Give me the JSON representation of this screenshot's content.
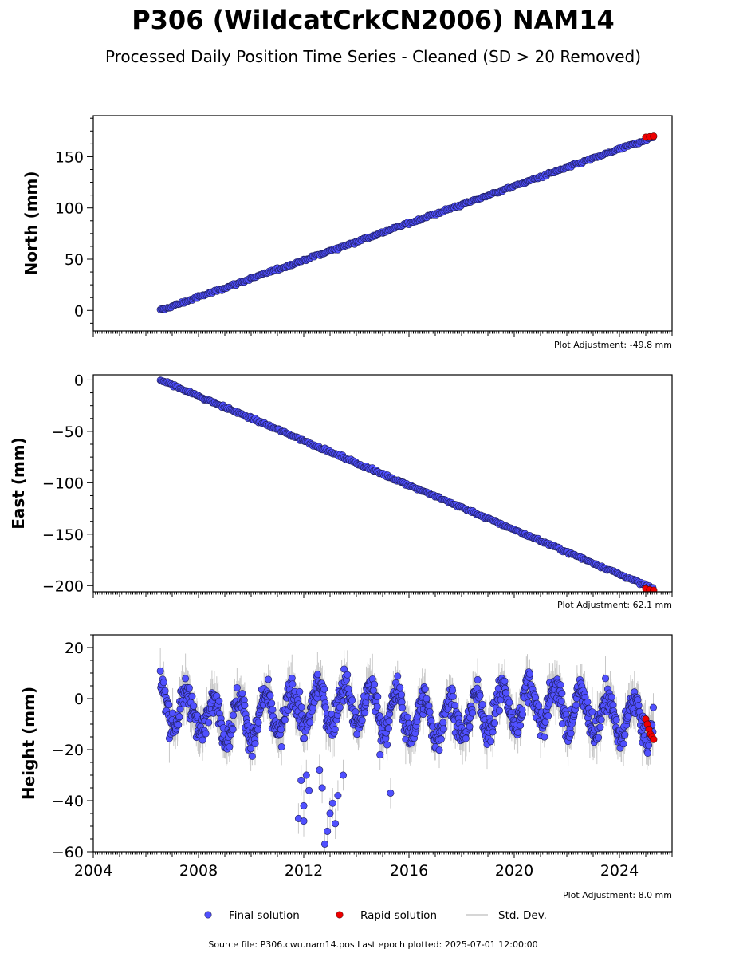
{
  "chart_data": {
    "type": "scatter",
    "title": "P306 (WildcatCrkCN2006) NAM14",
    "subtitle": "Processed Daily Position Time Series - Cleaned (SD > 20 Removed)",
    "x_ticks": [
      "2004",
      "2008",
      "2012",
      "2016",
      "2020",
      "2024"
    ],
    "xlim": [
      2004,
      2026
    ],
    "panels": [
      {
        "ylabel": "North (mm)",
        "ylim": [
          -20,
          190
        ],
        "yticks": [
          0,
          50,
          100,
          150
        ],
        "adjustment": "Plot Adjustment: -49.8 mm",
        "trend": {
          "x_start": 2006.55,
          "y_start": 0,
          "x_end": 2025.3,
          "y_end": 169
        },
        "noise_mm": 1.5,
        "rapid": {
          "x": 2025.0,
          "x_end": 2025.3,
          "y": [
            169,
            169.5,
            170
          ]
        }
      },
      {
        "ylabel": "East (mm)",
        "ylim": [
          -206,
          5
        ],
        "yticks": [
          0,
          -50,
          -100,
          -150,
          -200
        ],
        "adjustment": "Plot Adjustment: 62.1 mm",
        "trend": {
          "x_start": 2006.55,
          "y_start": 0,
          "x_end": 2025.3,
          "y_end": -203
        },
        "noise_mm": 1.5,
        "rapid": {
          "x": 2025.0,
          "x_end": 2025.3,
          "y": [
            -203,
            -204,
            -204.5
          ]
        }
      },
      {
        "ylabel": "Height (mm)",
        "ylim": [
          -60,
          25
        ],
        "yticks": [
          20,
          0,
          -20,
          -40,
          -60
        ],
        "adjustment": "Plot Adjustment: 8.0 mm",
        "seasonal": {
          "x_start": 2006.55,
          "x_end": 2025.3,
          "amplitude_mm": 8,
          "noise_mm": 4
        },
        "outliers": [
          {
            "x": 2011.8,
            "y": -47
          },
          {
            "x": 2012.0,
            "y": -48
          },
          {
            "x": 2011.9,
            "y": -32
          },
          {
            "x": 2012.1,
            "y": -30
          },
          {
            "x": 2012.2,
            "y": -36
          },
          {
            "x": 2012.6,
            "y": -28
          },
          {
            "x": 2012.8,
            "y": -57
          },
          {
            "x": 2012.9,
            "y": -52
          },
          {
            "x": 2013.0,
            "y": -45
          },
          {
            "x": 2013.1,
            "y": -41
          },
          {
            "x": 2012.7,
            "y": -35
          },
          {
            "x": 2013.3,
            "y": -38
          },
          {
            "x": 2013.5,
            "y": -30
          },
          {
            "x": 2015.3,
            "y": -37
          },
          {
            "x": 2012.0,
            "y": -42
          },
          {
            "x": 2013.2,
            "y": -49
          },
          {
            "x": 2014.9,
            "y": -22
          }
        ],
        "rapid": {
          "x": 2025.0,
          "x_end": 2025.3,
          "y": [
            -8,
            -10,
            -12,
            -14,
            -15,
            -16
          ]
        }
      }
    ],
    "legend": [
      "Final solution",
      "Rapid solution",
      "Std. Dev."
    ],
    "colors": {
      "final": "#5050ff",
      "rapid": "#ee0000",
      "stddev": "#c8c8c8"
    },
    "footer": "Source file: P306.cwu.nam14.pos  Last epoch plotted: 2025-07-01 12:00:00"
  }
}
